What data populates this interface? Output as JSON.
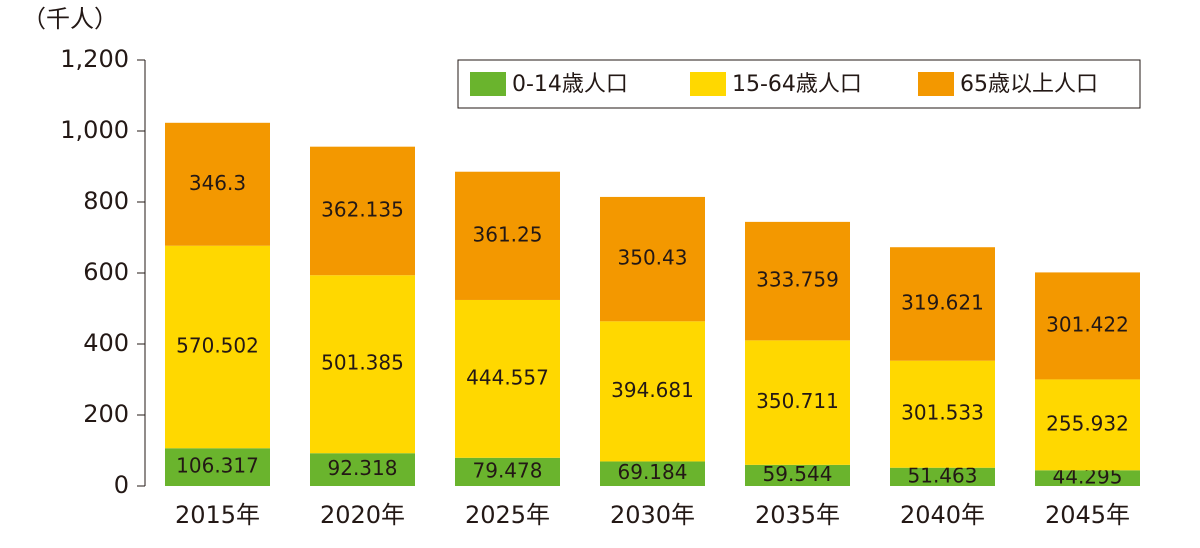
{
  "chart_data": {
    "type": "stacked-bar",
    "y_label": "（千人）",
    "categories": [
      "2015年",
      "2020年",
      "2025年",
      "2030年",
      "2035年",
      "2040年",
      "2045年"
    ],
    "series": [
      {
        "name": "0-14歳人口",
        "color": "#6ab42d",
        "values": [
          106.317,
          92.318,
          79.478,
          69.184,
          59.544,
          51.463,
          44.295
        ]
      },
      {
        "name": "15-64歳人口",
        "color": "#ffd800",
        "values": [
          570.502,
          501.385,
          444.557,
          394.681,
          350.711,
          301.533,
          255.932
        ]
      },
      {
        "name": "65歳以上人口",
        "color": "#f39800",
        "values": [
          346.3,
          362.135,
          361.25,
          350.43,
          333.759,
          319.621,
          301.422
        ]
      }
    ],
    "ylim": [
      0,
      1200
    ],
    "yticks": [
      0,
      200,
      400,
      600,
      800,
      {
        "value": 1000,
        "label": "1,000"
      },
      {
        "value": 1200,
        "label": "1,200"
      }
    ],
    "legend": "top-right"
  }
}
